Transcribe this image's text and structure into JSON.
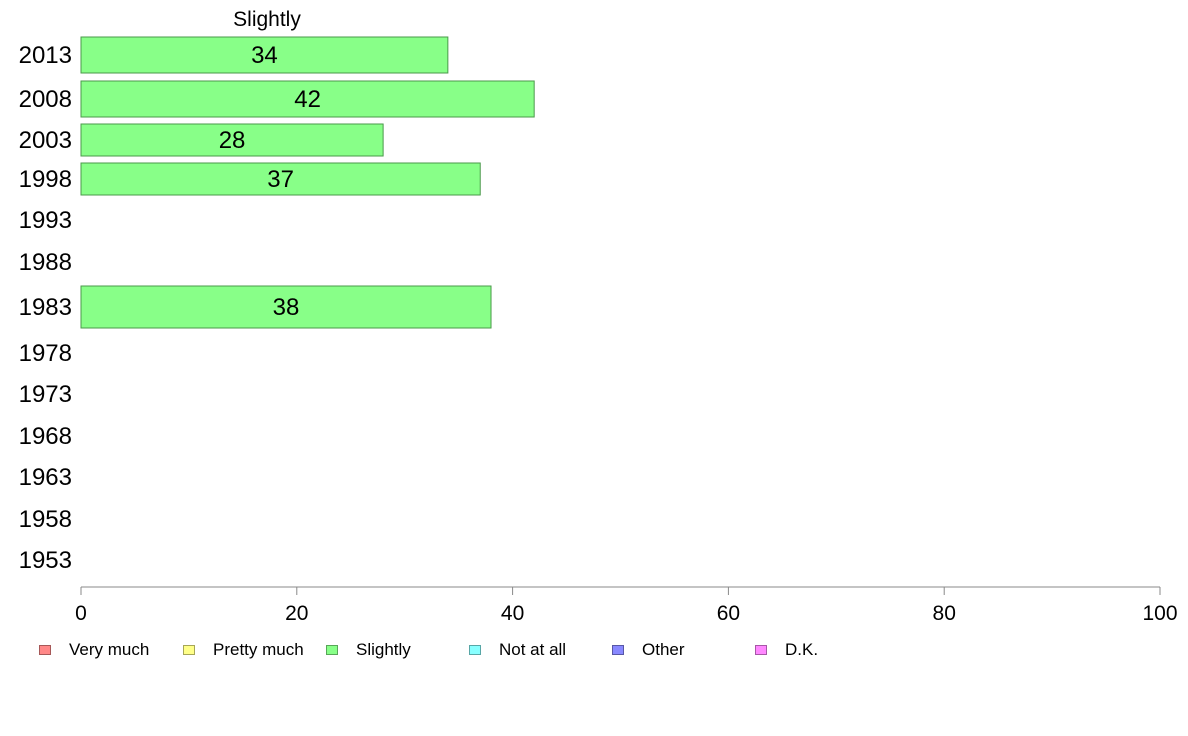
{
  "chart_data": {
    "type": "bar",
    "orientation": "horizontal",
    "title": "Slightly",
    "categories": [
      "2013",
      "2008",
      "2003",
      "1998",
      "1993",
      "1988",
      "1983",
      "1978",
      "1973",
      "1968",
      "1963",
      "1958",
      "1953"
    ],
    "series": [
      {
        "name": "Slightly",
        "color": "#88ff88",
        "values": [
          34,
          42,
          28,
          37,
          null,
          null,
          38,
          null,
          null,
          null,
          null,
          null,
          null
        ]
      }
    ],
    "xlim": [
      0,
      100
    ],
    "xticks": [
      0,
      20,
      40,
      60,
      80,
      100
    ],
    "xlabel": "",
    "ylabel": "",
    "grid": false,
    "legend_position": "bottom",
    "legend": [
      {
        "label": "Very much",
        "color": "#ff8888"
      },
      {
        "label": "Pretty much",
        "color": "#ffff88"
      },
      {
        "label": "Slightly",
        "color": "#88ff88"
      },
      {
        "label": "Not at all",
        "color": "#88ffff"
      },
      {
        "label": "Other",
        "color": "#8888ff"
      },
      {
        "label": "D.K.",
        "color": "#ff88ff"
      }
    ]
  }
}
